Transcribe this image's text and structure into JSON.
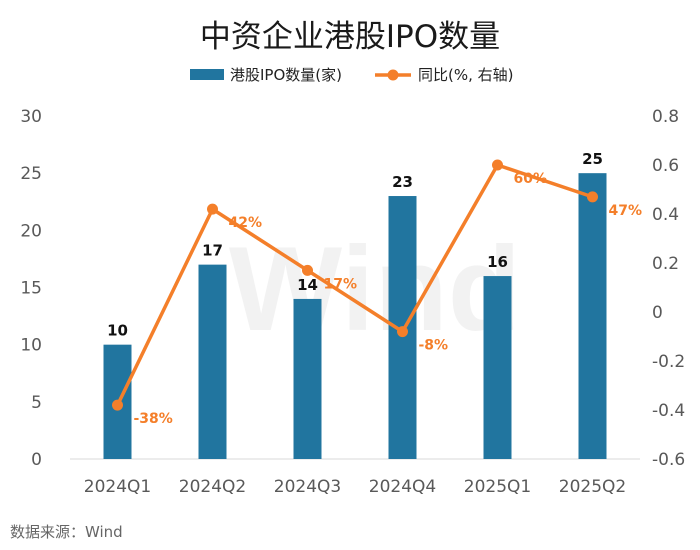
{
  "chart_data": {
    "type": "bar+line",
    "title": "中资企业港股IPO数量",
    "categories": [
      "2024Q1",
      "2024Q2",
      "2024Q3",
      "2024Q4",
      "2025Q1",
      "2025Q2"
    ],
    "series": [
      {
        "name": "港股IPO数量(家)",
        "type": "bar",
        "axis": "left",
        "color": "#21759F",
        "values": [
          10,
          17,
          14,
          23,
          16,
          25
        ],
        "labels": [
          "10",
          "17",
          "14",
          "23",
          "16",
          "25"
        ]
      },
      {
        "name": "同比(%, 右轴)",
        "type": "line",
        "axis": "right",
        "color": "#F47F2A",
        "values": [
          -0.38,
          0.42,
          0.17,
          -0.08,
          0.6,
          0.47
        ],
        "labels": [
          "-38%",
          "42%",
          "17%",
          "-8%",
          "60%",
          "47%"
        ]
      }
    ],
    "left_axis": {
      "min": 0,
      "max": 30,
      "step": 5,
      "ticks": [
        "0",
        "5",
        "10",
        "15",
        "20",
        "25",
        "30"
      ]
    },
    "right_axis": {
      "min": -0.6,
      "max": 0.8,
      "step": 0.2,
      "ticks": [
        "-0.6",
        "-0.4",
        "-0.2",
        "0",
        "0.2",
        "0.4",
        "0.6",
        "0.8"
      ]
    },
    "watermark": "Wind",
    "source": "数据来源：Wind"
  }
}
